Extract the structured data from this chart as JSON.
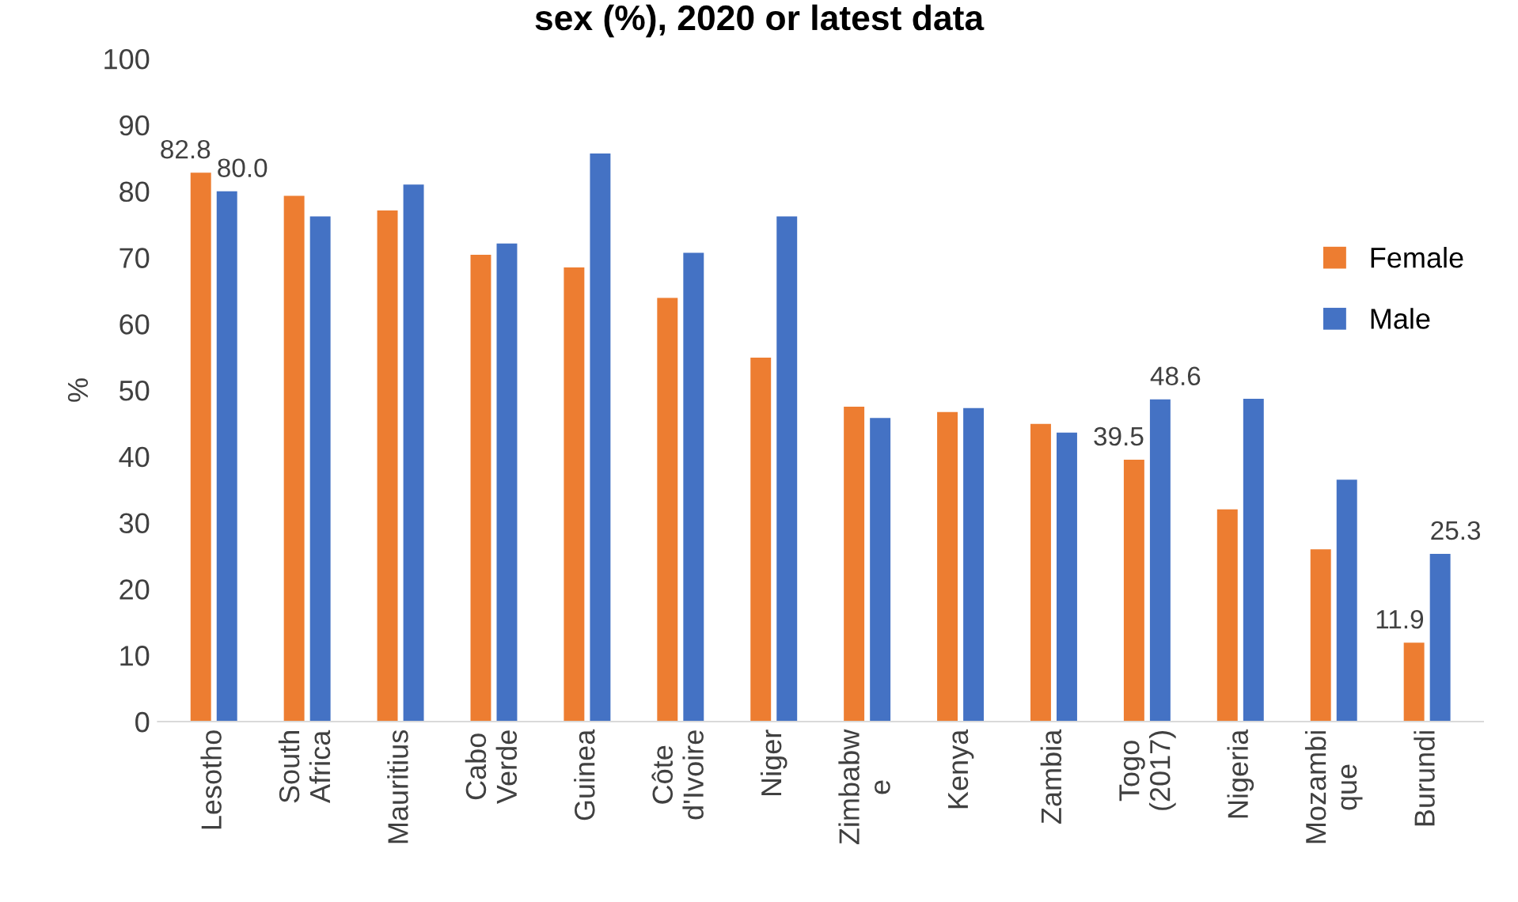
{
  "chart_data": {
    "type": "bar",
    "title": "sex (%), 2020 or latest data",
    "ylabel": "%",
    "categories": [
      "Lesotho",
      "South\nAfrica",
      "Mauritius",
      "Cabo\nVerde",
      "Guinea",
      "Côte\nd'Ivoire",
      "Niger",
      "Zimbabw\ne",
      "Kenya",
      "Zambia",
      "Togo\n(2017)",
      "Nigeria",
      "Mozambi\nque",
      "Burundi"
    ],
    "series": [
      {
        "name": "Female",
        "color": "#ed7d31",
        "values": [
          82.8,
          79.3,
          77.1,
          70.4,
          68.5,
          63.9,
          54.9,
          47.5,
          46.7,
          44.9,
          39.5,
          32.0,
          26.0,
          11.9
        ],
        "value_labels": [
          "82.8",
          null,
          null,
          null,
          null,
          null,
          null,
          null,
          null,
          null,
          "39.5",
          null,
          null,
          "11.9"
        ]
      },
      {
        "name": "Male",
        "color": "#4472c4",
        "values": [
          80.0,
          76.2,
          81.0,
          72.1,
          85.7,
          70.7,
          76.2,
          45.8,
          47.3,
          43.6,
          48.6,
          48.7,
          36.5,
          25.3
        ],
        "value_labels": [
          "80.0",
          null,
          null,
          null,
          null,
          null,
          null,
          null,
          null,
          null,
          "48.6",
          null,
          null,
          "25.3"
        ]
      }
    ],
    "ylim": [
      0,
      100
    ],
    "yticks": [
      0,
      10,
      20,
      30,
      40,
      50,
      60,
      70,
      80,
      90,
      100
    ],
    "grid": false,
    "legend": "right"
  }
}
